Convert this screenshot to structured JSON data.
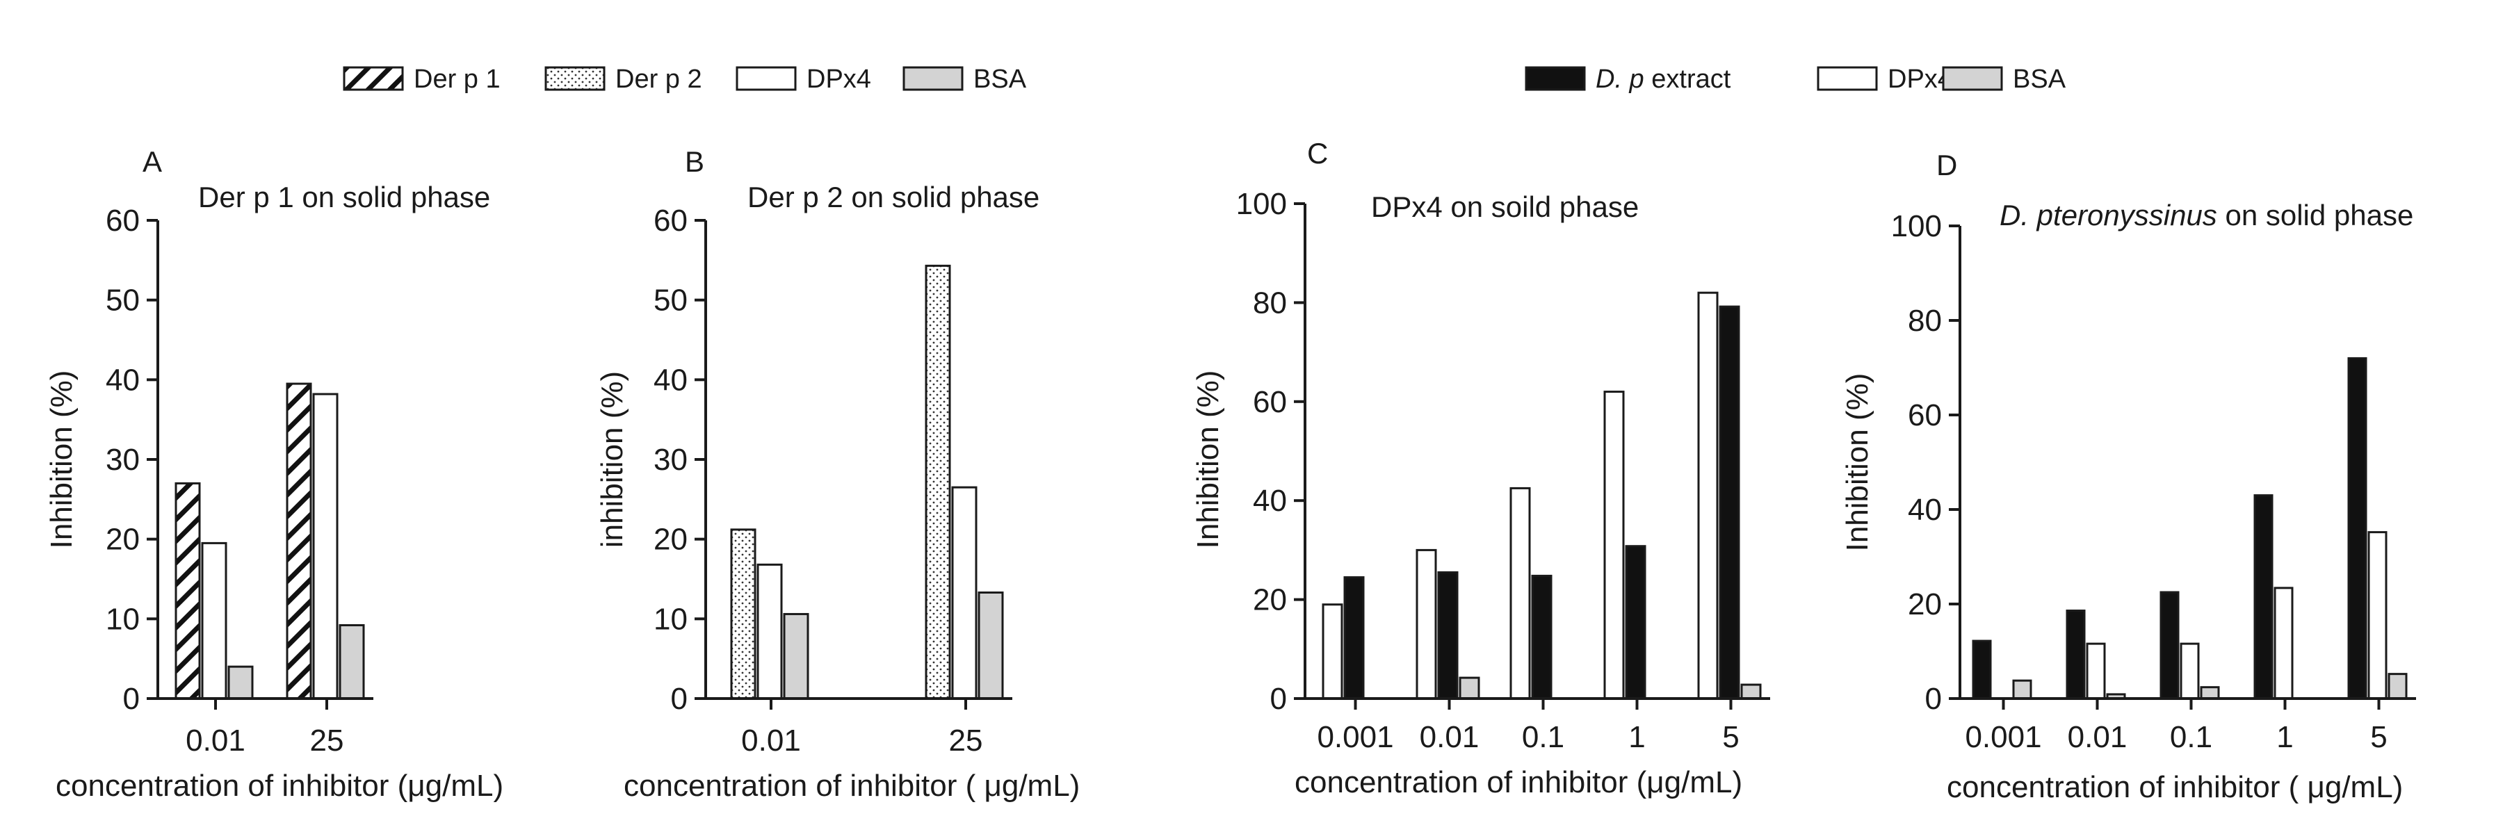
{
  "legends": [
    {
      "id": "left",
      "items": [
        {
          "label": "Der p 1",
          "fill": "hatch"
        },
        {
          "label": "Der p 2",
          "fill": "dots"
        },
        {
          "label": "DPx4",
          "fill": "white"
        },
        {
          "label": "BSA",
          "fill": "gray"
        }
      ]
    },
    {
      "id": "right",
      "items": [
        {
          "label_italic": "D. p",
          "label_rest": " extract",
          "fill": "black"
        },
        {
          "label": "DPx4",
          "fill": "white"
        },
        {
          "label": "BSA",
          "fill": "gray"
        }
      ]
    }
  ],
  "colors": {
    "black": "#111111",
    "white": "#ffffff",
    "gray": "#d3d3d3",
    "axis": "#1a1a1a"
  },
  "chart_data": [
    {
      "panel": "A",
      "type": "bar",
      "title": "Der p 1 on solid phase",
      "xlabel": "concentration of inhibitor (μg/mL)",
      "ylabel": "Inhibition (%)",
      "ylim": [
        0,
        60
      ],
      "yticks": [
        0,
        10,
        20,
        30,
        40,
        50,
        60
      ],
      "categories": [
        "0.01",
        "25"
      ],
      "series": [
        {
          "name": "Der p 1",
          "fill": "hatch",
          "values": [
            27,
            39.5
          ]
        },
        {
          "name": "DPx4",
          "fill": "white",
          "values": [
            19.5,
            38.2
          ]
        },
        {
          "name": "BSA",
          "fill": "gray",
          "values": [
            4,
            9.2
          ]
        }
      ],
      "grid": false
    },
    {
      "panel": "B",
      "type": "bar",
      "title": "Der p 2 on solid phase",
      "xlabel": "concentration of inhibitor ( μg/mL)",
      "ylabel": "inhibition (%)",
      "ylim": [
        0,
        60
      ],
      "yticks": [
        0,
        10,
        20,
        30,
        40,
        50,
        60
      ],
      "categories": [
        "0.01",
        "25"
      ],
      "series": [
        {
          "name": "Der p 2",
          "fill": "dots",
          "values": [
            21.2,
            54.3
          ]
        },
        {
          "name": "DPx4",
          "fill": "white",
          "values": [
            16.8,
            26.5
          ]
        },
        {
          "name": "BSA",
          "fill": "gray",
          "values": [
            10.6,
            13.3
          ]
        }
      ],
      "grid": false
    },
    {
      "panel": "C",
      "type": "bar",
      "title": "DPx4 on soild phase",
      "xlabel": "concentration of inhibitor (μg/mL)",
      "ylabel": "Inhibition (%)",
      "ylim": [
        0,
        100
      ],
      "yticks": [
        0,
        20,
        40,
        60,
        80,
        100
      ],
      "categories": [
        "0.001",
        "0.01",
        "0.1",
        "1",
        "5"
      ],
      "series": [
        {
          "name": "DPx4",
          "fill": "white",
          "values": [
            19,
            30,
            42.5,
            62,
            82
          ]
        },
        {
          "name": "D. p extract",
          "fill": "black",
          "values": [
            24.5,
            25.5,
            24.8,
            30.8,
            79.2
          ]
        },
        {
          "name": "BSA",
          "fill": "gray",
          "values": [
            0,
            4.2,
            0,
            0,
            2.8
          ]
        }
      ],
      "grid": false
    },
    {
      "panel": "D",
      "type": "bar",
      "title_italic": "D. pteronyssinus",
      "title_rest": " on solid phase",
      "xlabel": "concentration of inhibitor ( μg/mL)",
      "ylabel": "Inhibition (%)",
      "ylim": [
        0,
        100
      ],
      "yticks": [
        0,
        20,
        40,
        60,
        80,
        100
      ],
      "categories": [
        "0.001",
        "0.01",
        "0.1",
        "1",
        "5"
      ],
      "series": [
        {
          "name": "D. p extract",
          "fill": "black",
          "values": [
            12.2,
            18.6,
            22.5,
            43,
            72
          ]
        },
        {
          "name": "DPx4",
          "fill": "white",
          "values": [
            0,
            11.6,
            11.6,
            23.4,
            35.2
          ]
        },
        {
          "name": "BSA",
          "fill": "gray",
          "values": [
            3.8,
            0.9,
            2.4,
            0,
            5.2
          ]
        }
      ],
      "grid": false
    }
  ]
}
